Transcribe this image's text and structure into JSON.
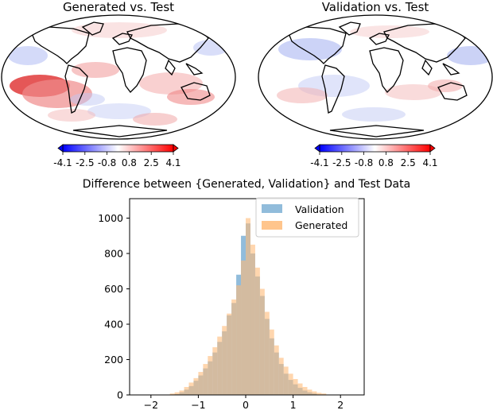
{
  "maps": [
    {
      "title": "Generated vs. Test",
      "colorbar": {
        "ticks": [
          "-4.1",
          "-2.5",
          "-0.8",
          "0.8",
          "2.5",
          "4.1"
        ],
        "range": [
          -4.1,
          4.1
        ],
        "colormap": "bwr"
      }
    },
    {
      "title": "Validation vs. Test",
      "colorbar": {
        "ticks": [
          "-4.1",
          "-2.5",
          "-0.8",
          "0.8",
          "2.5",
          "4.1"
        ],
        "range": [
          -4.1,
          4.1
        ],
        "colormap": "bwr"
      }
    }
  ],
  "colors": {
    "validation": "#7eb0d5",
    "generated": "#ffbb78",
    "overlap": "#c9a27a",
    "cold": "#0000ff",
    "hot": "#ff0000"
  },
  "chart_data": [
    {
      "type": "histogram",
      "title": "Difference between {Generated, Validation} and Test Data",
      "xlabel": "",
      "ylabel": "",
      "xticks": [
        "−2",
        "−1",
        "0",
        "1",
        "2"
      ],
      "yticks": [
        "0",
        "200",
        "400",
        "600",
        "800",
        "1000"
      ],
      "xlim": [
        -2.45,
        2.5
      ],
      "ylim": [
        0,
        1110
      ],
      "bin_width": 0.1,
      "grid": false,
      "legend_position": "top-right",
      "series": [
        {
          "name": "Validation",
          "bins": [
            [
              -1.5,
              5
            ],
            [
              -1.4,
              15
            ],
            [
              -1.3,
              30
            ],
            [
              -1.2,
              50
            ],
            [
              -1.1,
              80
            ],
            [
              -1.0,
              110
            ],
            [
              -0.9,
              150
            ],
            [
              -0.8,
              190
            ],
            [
              -0.7,
              240
            ],
            [
              -0.6,
              300
            ],
            [
              -0.5,
              360
            ],
            [
              -0.4,
              450
            ],
            [
              -0.3,
              520
            ],
            [
              -0.2,
              680
            ],
            [
              -0.1,
              900
            ],
            [
              0.0,
              970
            ],
            [
              0.1,
              800
            ],
            [
              0.2,
              670
            ],
            [
              0.3,
              560
            ],
            [
              0.4,
              430
            ],
            [
              0.5,
              320
            ],
            [
              0.6,
              240
            ],
            [
              0.7,
              175
            ],
            [
              0.8,
              120
            ],
            [
              0.9,
              85
            ],
            [
              1.0,
              60
            ],
            [
              1.1,
              40
            ],
            [
              1.2,
              25
            ],
            [
              1.3,
              15
            ],
            [
              1.4,
              8
            ]
          ]
        },
        {
          "name": "Generated",
          "bins": [
            [
              -1.6,
              8
            ],
            [
              -1.5,
              15
            ],
            [
              -1.4,
              25
            ],
            [
              -1.3,
              45
            ],
            [
              -1.2,
              70
            ],
            [
              -1.1,
              95
            ],
            [
              -1.0,
              130
            ],
            [
              -0.9,
              175
            ],
            [
              -0.8,
              220
            ],
            [
              -0.7,
              270
            ],
            [
              -0.6,
              330
            ],
            [
              -0.5,
              390
            ],
            [
              -0.4,
              460
            ],
            [
              -0.3,
              540
            ],
            [
              -0.2,
              620
            ],
            [
              -0.1,
              760
            ],
            [
              0.0,
              1000
            ],
            [
              0.1,
              850
            ],
            [
              0.2,
              720
            ],
            [
              0.3,
              600
            ],
            [
              0.4,
              470
            ],
            [
              0.5,
              370
            ],
            [
              0.6,
              280
            ],
            [
              0.7,
              210
            ],
            [
              0.8,
              160
            ],
            [
              0.9,
              120
            ],
            [
              1.0,
              90
            ],
            [
              1.1,
              65
            ],
            [
              1.2,
              45
            ],
            [
              1.3,
              30
            ],
            [
              1.4,
              20
            ],
            [
              1.5,
              12
            ],
            [
              1.6,
              8
            ]
          ]
        }
      ]
    }
  ]
}
